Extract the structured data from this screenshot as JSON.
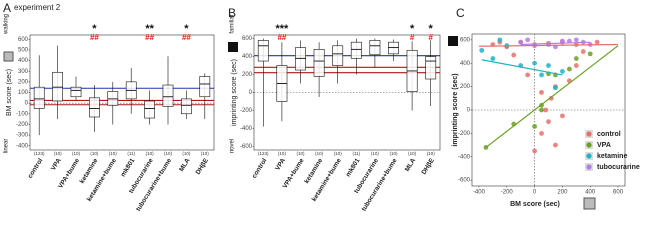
{
  "figure_title": "experiment 2",
  "chart_data": [
    {
      "type": "box",
      "panel_label": "A",
      "ylabel": "BM score (sec)",
      "top_label": "walking",
      "bottom_label": "linear",
      "ylim": [
        -440,
        640
      ],
      "yticks": [
        -400,
        -300,
        -200,
        -100,
        0,
        100,
        200,
        300,
        400,
        500,
        600
      ],
      "zero_line": true,
      "categories": [
        "control",
        "VPA",
        "VPA+bume",
        "ketamine",
        "ketamine+bume",
        "mk801",
        "tubocurarine",
        "tubocurarine+bume",
        "MLA",
        "DHβE"
      ],
      "category_colors": [
        "#e0201b",
        "#3f9a1f",
        "#3f9a1f",
        "#2a7fd0",
        "#2a7fd0",
        "#111111",
        "#7a2fb0",
        "#7a2fb0",
        "#111111",
        "#111111"
      ],
      "n_labels": [
        "(123)",
        "(10)",
        "(10)",
        "(10)",
        "(10)",
        "(11)",
        "(10)",
        "(10)",
        "(10)",
        "(10)"
      ],
      "whislo": [
        -300,
        -150,
        30,
        -270,
        -200,
        -100,
        -200,
        -200,
        -150,
        -150
      ],
      "q1": [
        -50,
        20,
        60,
        -130,
        -20,
        40,
        -140,
        -30,
        -100,
        60
      ],
      "med": [
        40,
        150,
        120,
        -50,
        40,
        120,
        -50,
        60,
        -20,
        180
      ],
      "q3": [
        150,
        290,
        150,
        50,
        110,
        200,
        20,
        170,
        40,
        250
      ],
      "whishi": [
        450,
        540,
        250,
        170,
        200,
        330,
        120,
        440,
        120,
        280
      ],
      "stars": [
        null,
        null,
        null,
        "*",
        null,
        null,
        "**",
        null,
        "*",
        null
      ],
      "hashes": [
        null,
        null,
        null,
        "##",
        null,
        null,
        "##",
        null,
        "##",
        null
      ],
      "hlines": [
        {
          "value": 140,
          "color": "#2233aa"
        },
        {
          "value": 25,
          "color": "#b01818"
        },
        {
          "value": -15,
          "color": "#b01818"
        }
      ]
    },
    {
      "type": "box",
      "panel_label": "B",
      "ylabel": "imprinting score (sec)",
      "top_label": "familiar",
      "bottom_label": "novel",
      "ylim": [
        -640,
        640
      ],
      "yticks": [
        -600,
        -400,
        -200,
        0,
        200,
        400,
        600
      ],
      "zero_line": true,
      "categories": [
        "control",
        "VPA",
        "VPA+bume",
        "ketamine",
        "ketamine+bume",
        "mk801",
        "tubocurarine",
        "tubocurarine+bume",
        "MLA",
        "DHβE"
      ],
      "category_colors": [
        "#e0201b",
        "#3f9a1f",
        "#3f9a1f",
        "#2a7fd0",
        "#2a7fd0",
        "#111111",
        "#7a2fb0",
        "#7a2fb0",
        "#111111",
        "#111111"
      ],
      "n_labels": [
        "(123)",
        "(10)",
        "(10)",
        "(10)",
        "(10)",
        "(11)",
        "(10)",
        "(10)",
        "(10)",
        "(10)"
      ],
      "whislo": [
        -380,
        -320,
        100,
        -50,
        100,
        200,
        280,
        350,
        -200,
        -150
      ],
      "q1": [
        350,
        -100,
        250,
        180,
        300,
        380,
        420,
        430,
        10,
        150
      ],
      "med": [
        520,
        100,
        380,
        350,
        430,
        480,
        520,
        500,
        240,
        350
      ],
      "q3": [
        580,
        300,
        500,
        480,
        520,
        560,
        580,
        560,
        470,
        400
      ],
      "whishi": [
        600,
        560,
        580,
        560,
        580,
        600,
        600,
        590,
        570,
        580
      ],
      "stars": [
        null,
        "***",
        null,
        null,
        null,
        null,
        null,
        null,
        "*",
        "*"
      ],
      "hashes": [
        null,
        "##",
        null,
        null,
        null,
        null,
        null,
        null,
        "#",
        "#"
      ],
      "hlines": [
        {
          "value": 410,
          "color": "#2233aa"
        },
        {
          "value": 280,
          "color": "#b01818"
        },
        {
          "value": 220,
          "color": "#b01818"
        }
      ]
    },
    {
      "type": "scatter",
      "panel_label": "C",
      "xlabel": "BM score (sec)",
      "ylabel": "imprinting score (sec)",
      "xlim": [
        -450,
        650
      ],
      "ylim": [
        -650,
        650
      ],
      "xticks": [
        -400,
        -200,
        0,
        200,
        400,
        600
      ],
      "yticks": [
        -600,
        -400,
        -200,
        0,
        200,
        400,
        600
      ],
      "zero_line": true,
      "series": [
        {
          "name": "control",
          "color": "#e8706b",
          "x": [
            -300,
            -200,
            -100,
            0,
            100,
            200,
            300,
            -50,
            50,
            120,
            200,
            100,
            150,
            50,
            250,
            350,
            450,
            -150,
            -250,
            0,
            80,
            300,
            150
          ],
          "y": [
            560,
            540,
            580,
            560,
            570,
            580,
            560,
            300,
            150,
            100,
            -50,
            -100,
            -300,
            -200,
            250,
            500,
            580,
            470,
            580,
            -350,
            0,
            380,
            200
          ],
          "fit_x": [
            -400,
            600
          ],
          "fit_y": [
            545,
            560
          ]
        },
        {
          "name": "VPA",
          "color": "#6aa122",
          "x": [
            -350,
            -150,
            0,
            50,
            100,
            150,
            250,
            300,
            400,
            50
          ],
          "y": [
            -320,
            -120,
            -140,
            40,
            310,
            300,
            350,
            440,
            480,
            0
          ],
          "fit_x": [
            -350,
            600
          ],
          "fit_y": [
            -320,
            550
          ]
        },
        {
          "name": "ketamine",
          "color": "#1fb3c4",
          "x": [
            -380,
            -300,
            -250,
            -100,
            0,
            50,
            100,
            200,
            150,
            -200
          ],
          "y": [
            510,
            440,
            600,
            380,
            400,
            300,
            380,
            330,
            190,
            550
          ],
          "fit_x": [
            -380,
            200
          ],
          "fit_y": [
            430,
            300
          ]
        },
        {
          "name": "tubocurarine",
          "color": "#b27be6",
          "x": [
            -100,
            0,
            100,
            200,
            300,
            400,
            250,
            150,
            -50,
            350
          ],
          "y": [
            580,
            550,
            560,
            590,
            600,
            560,
            590,
            540,
            600,
            580
          ],
          "fit_x": [
            -100,
            400
          ],
          "fit_y": [
            560,
            580
          ]
        }
      ]
    }
  ]
}
